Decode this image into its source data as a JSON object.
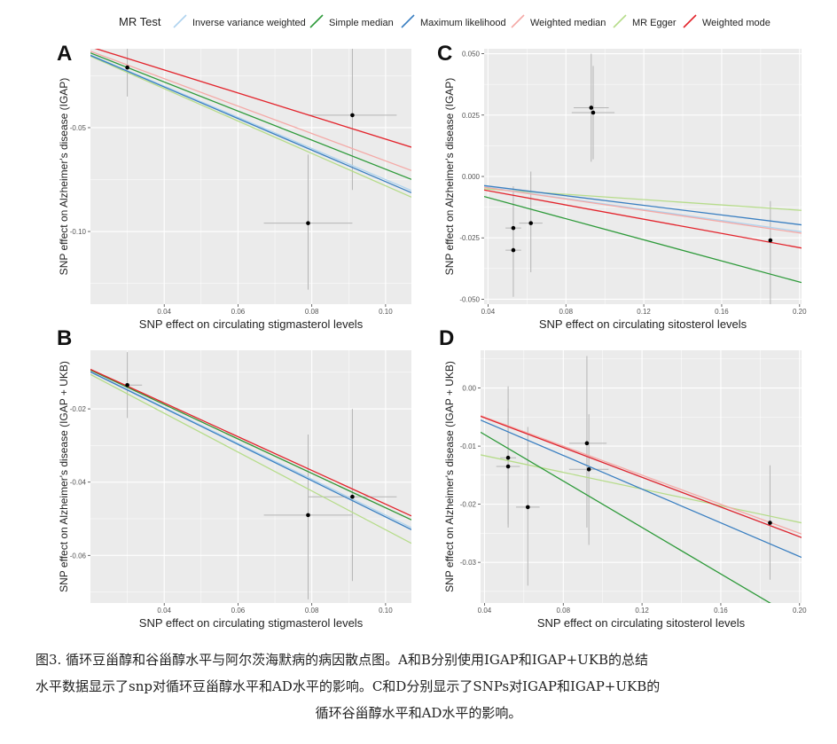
{
  "legend": {
    "title": "MR Test",
    "items": [
      {
        "name": "Inverse variance weighted",
        "color": "#aed3ee"
      },
      {
        "name": "Simple median",
        "color": "#2e9a3a"
      },
      {
        "name": "Maximum likelihood",
        "color": "#3a7fc1"
      },
      {
        "name": "Weighted median",
        "color": "#f4a9a6"
      },
      {
        "name": "MR Egger",
        "color": "#b6dc8a"
      },
      {
        "name": "Weighted mode",
        "color": "#e3232b"
      }
    ]
  },
  "chart_data": [
    {
      "panel": "A",
      "type": "scatter",
      "xlabel": "SNP effect on circulating stigmasterol levels",
      "ylabel": "SNP effect on Alzheimer's disease (IGAP)",
      "xlim": [
        0.02,
        0.107
      ],
      "ylim": [
        -0.135,
        -0.012
      ],
      "xticks": [
        0.04,
        0.06,
        0.08,
        0.1
      ],
      "xtick_labels": [
        "0.04",
        "0.06",
        "0.08",
        "0.10"
      ],
      "yticks": [
        -0.05,
        -0.1
      ],
      "ytick_labels": [
        "-0.05",
        "-0.10"
      ],
      "points": [
        {
          "x": 0.03,
          "y": -0.021,
          "xerr": 0.0,
          "ylo": -0.035,
          "yhi": -0.007
        },
        {
          "x": 0.079,
          "y": -0.096,
          "xlo": 0.067,
          "xhi": 0.091,
          "ylo": -0.128,
          "yhi": -0.063
        },
        {
          "x": 0.091,
          "y": -0.044,
          "xlo": 0.079,
          "xhi": 0.103,
          "ylo": -0.08,
          "yhi": -0.007
        }
      ],
      "lines": [
        {
          "name": "Inverse variance weighted",
          "slope": -0.75
        },
        {
          "name": "Simple median",
          "slope": -0.7
        },
        {
          "name": "Maximum likelihood",
          "slope": -0.76
        },
        {
          "name": "Weighted median",
          "slope": -0.66
        },
        {
          "name": "MR Egger",
          "slope": -0.78
        },
        {
          "name": "Weighted mode",
          "slope": -0.555
        }
      ]
    },
    {
      "panel": "B",
      "type": "scatter",
      "xlabel": "SNP effect on circulating stigmasterol levels",
      "ylabel": "SNP effect on Alzheimer's disease (IGAP + UKB)",
      "xlim": [
        0.02,
        0.107
      ],
      "ylim": [
        -0.073,
        -0.004
      ],
      "xticks": [
        0.04,
        0.06,
        0.08,
        0.1
      ],
      "xtick_labels": [
        "0.04",
        "0.06",
        "0.08",
        "0.10"
      ],
      "yticks": [
        -0.02,
        -0.04,
        -0.06
      ],
      "ytick_labels": [
        "-0.02",
        "-0.04",
        "-0.06"
      ],
      "points": [
        {
          "x": 0.03,
          "y": -0.0135,
          "xlo": 0.03,
          "xhi": 0.034,
          "ylo": -0.0225,
          "yhi": -0.0045
        },
        {
          "x": 0.079,
          "y": -0.049,
          "xlo": 0.067,
          "xhi": 0.091,
          "ylo": -0.072,
          "yhi": -0.027
        },
        {
          "x": 0.091,
          "y": -0.044,
          "xlo": 0.079,
          "xhi": 0.103,
          "ylo": -0.067,
          "yhi": -0.02
        }
      ],
      "lines": [
        {
          "name": "Inverse variance weighted",
          "slope": -0.49
        },
        {
          "name": "Simple median",
          "slope": -0.47
        },
        {
          "name": "Maximum likelihood",
          "slope": -0.495
        },
        {
          "name": "Weighted median",
          "slope": -0.47
        },
        {
          "name": "MR Egger",
          "slope": -0.53
        },
        {
          "name": "Weighted mode",
          "slope": -0.46
        }
      ]
    },
    {
      "panel": "C",
      "type": "scatter",
      "xlabel": "SNP effect on circulating sitosterol levels",
      "ylabel": "SNP effect on Alzheimer's disease (IGAP)",
      "xlim": [
        0.038,
        0.201
      ],
      "ylim": [
        -0.052,
        0.052
      ],
      "xticks": [
        0.04,
        0.08,
        0.12,
        0.16,
        0.2
      ],
      "xtick_labels": [
        "0.04",
        "0.08",
        "0.12",
        "0.16",
        "0.20"
      ],
      "yticks": [
        0.05,
        0.025,
        0.0,
        -0.025,
        -0.05
      ],
      "ytick_labels": [
        "0.050",
        "0.025",
        "0.000",
        "-0.025",
        "-0.050"
      ],
      "points": [
        {
          "x": 0.053,
          "y": -0.021,
          "xlo": 0.049,
          "xhi": 0.057,
          "ylo": -0.038,
          "yhi": -0.004
        },
        {
          "x": 0.053,
          "y": -0.03,
          "xlo": 0.049,
          "xhi": 0.057,
          "ylo": -0.049,
          "yhi": -0.011
        },
        {
          "x": 0.062,
          "y": -0.019,
          "xlo": 0.056,
          "xhi": 0.068,
          "ylo": -0.039,
          "yhi": 0.002
        },
        {
          "x": 0.093,
          "y": 0.028,
          "xlo": 0.084,
          "xhi": 0.102,
          "ylo": 0.006,
          "yhi": 0.05
        },
        {
          "x": 0.094,
          "y": 0.026,
          "xlo": 0.083,
          "xhi": 0.105,
          "ylo": 0.007,
          "yhi": 0.045
        },
        {
          "x": 0.185,
          "y": -0.026,
          "xlo": 0.185,
          "xhi": 0.185,
          "ylo": -0.052,
          "yhi": -0.01
        }
      ],
      "lines": [
        {
          "name": "Inverse variance weighted",
          "slope": -0.112
        },
        {
          "name": "Simple median",
          "slope": -0.215
        },
        {
          "name": "Maximum likelihood",
          "slope": -0.098
        },
        {
          "name": "Weighted median",
          "slope": -0.115
        },
        {
          "name": "MR Egger",
          "x0": 0.038,
          "y0": -0.005,
          "x1": 0.201,
          "y1": -0.0138
        },
        {
          "name": "Weighted mode",
          "slope": -0.145
        }
      ]
    },
    {
      "panel": "D",
      "type": "scatter",
      "xlabel": "SNP effect on circulating sitosterol levels",
      "ylabel": "SNP effect on Alzheimer's disease (IGAP + UKB)",
      "xlim": [
        0.038,
        0.201
      ],
      "ylim": [
        -0.037,
        0.0065
      ],
      "xticks": [
        0.04,
        0.08,
        0.12,
        0.16,
        0.2
      ],
      "xtick_labels": [
        "0.04",
        "0.08",
        "0.12",
        "0.16",
        "0.20"
      ],
      "yticks": [
        0.0,
        -0.01,
        -0.02,
        -0.03
      ],
      "ytick_labels": [
        "0.00",
        "-0.01",
        "-0.02",
        "-0.03"
      ],
      "points": [
        {
          "x": 0.052,
          "y": -0.012,
          "xlo": 0.048,
          "xhi": 0.056,
          "ylo": -0.024,
          "yhi": 0.0003
        },
        {
          "x": 0.052,
          "y": -0.0135,
          "xlo": 0.046,
          "xhi": 0.058,
          "ylo": -0.0235,
          "yhi": -0.0035
        },
        {
          "x": 0.062,
          "y": -0.0205,
          "xlo": 0.056,
          "xhi": 0.068,
          "ylo": -0.034,
          "yhi": -0.0067
        },
        {
          "x": 0.092,
          "y": -0.0095,
          "xlo": 0.083,
          "xhi": 0.102,
          "ylo": -0.024,
          "yhi": 0.0055
        },
        {
          "x": 0.093,
          "y": -0.014,
          "xlo": 0.083,
          "xhi": 0.103,
          "ylo": -0.027,
          "yhi": -0.0045
        },
        {
          "x": 0.185,
          "y": -0.0232,
          "xlo": 0.185,
          "xhi": 0.185,
          "ylo": -0.033,
          "yhi": -0.0133
        }
      ],
      "lines": [
        {
          "name": "Inverse variance weighted",
          "slope": -0.128
        },
        {
          "name": "Simple median",
          "slope": -0.2
        },
        {
          "name": "Maximum likelihood",
          "slope": -0.145
        },
        {
          "name": "Weighted median",
          "slope": -0.125
        },
        {
          "name": "MR Egger",
          "x0": 0.038,
          "y0": -0.0115,
          "x1": 0.201,
          "y1": -0.0232
        },
        {
          "name": "Weighted mode",
          "slope": -0.128
        }
      ]
    }
  ],
  "caption": {
    "line1": "图3. 循环豆甾醇和谷甾醇水平与阿尔茨海默病的病因散点图。A和B分别使用IGAP和IGAP+UKB的总结",
    "line2": "水平数据显示了snp对循环豆甾醇水平和AD水平的影响。C和D分别显示了SNPs对IGAP和IGAP+UKB的",
    "line3": "循环谷甾醇水平和AD水平的影响。"
  }
}
